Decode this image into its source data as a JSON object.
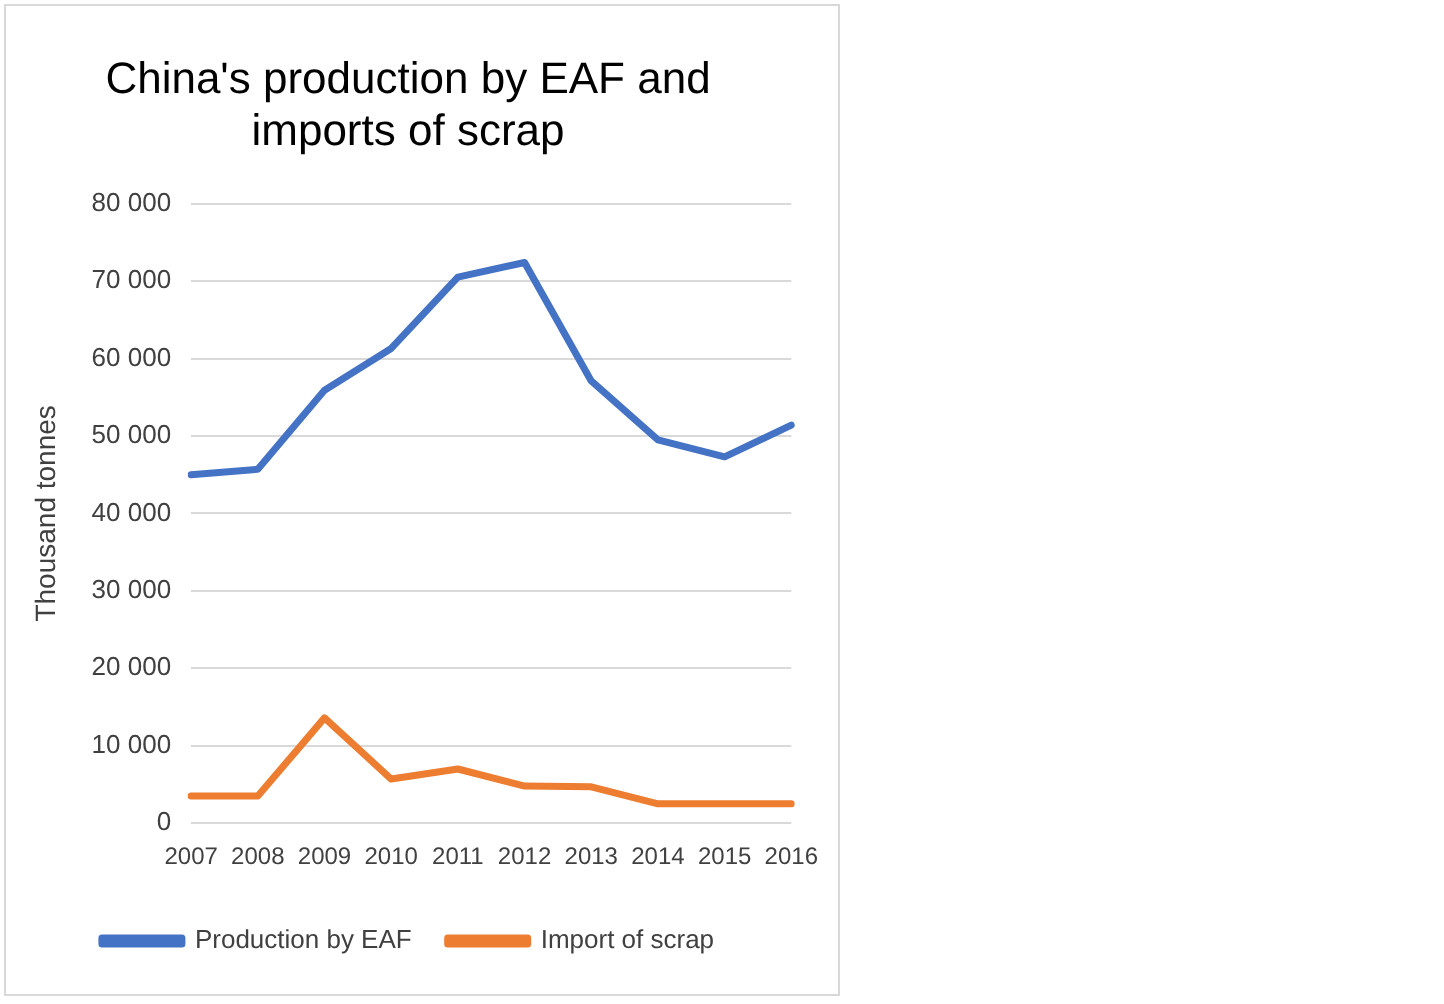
{
  "chart_data": {
    "type": "line",
    "title": "China's production by EAF and imports of scrap",
    "ylabel": "Thousand tonnes",
    "categories": [
      "2007",
      "2008",
      "2009",
      "2010",
      "2011",
      "2012",
      "2013",
      "2014",
      "2015",
      "2016"
    ],
    "series": [
      {
        "name": "Production by EAF",
        "color": "#4472c4",
        "values": [
          45000,
          45700,
          55900,
          61300,
          70500,
          72400,
          57100,
          49500,
          47300,
          51400
        ]
      },
      {
        "name": "Import of scrap",
        "color": "#ed7d31",
        "values": [
          3500,
          3500,
          13600,
          5700,
          7000,
          4800,
          4700,
          2500,
          2500,
          2500
        ]
      }
    ],
    "ylim": [
      0,
      80000
    ],
    "yticks": [
      {
        "value": 0,
        "label": "0"
      },
      {
        "value": 10000,
        "label": "10 000"
      },
      {
        "value": 20000,
        "label": "20 000"
      },
      {
        "value": 30000,
        "label": "30 000"
      },
      {
        "value": 40000,
        "label": "40 000"
      },
      {
        "value": 50000,
        "label": "50 000"
      },
      {
        "value": 60000,
        "label": "60 000"
      },
      {
        "value": 70000,
        "label": "70 000"
      },
      {
        "value": 80000,
        "label": "80 000"
      }
    ],
    "grid": "y",
    "legend": "bottom",
    "marker": "none",
    "line_style": "solid"
  }
}
